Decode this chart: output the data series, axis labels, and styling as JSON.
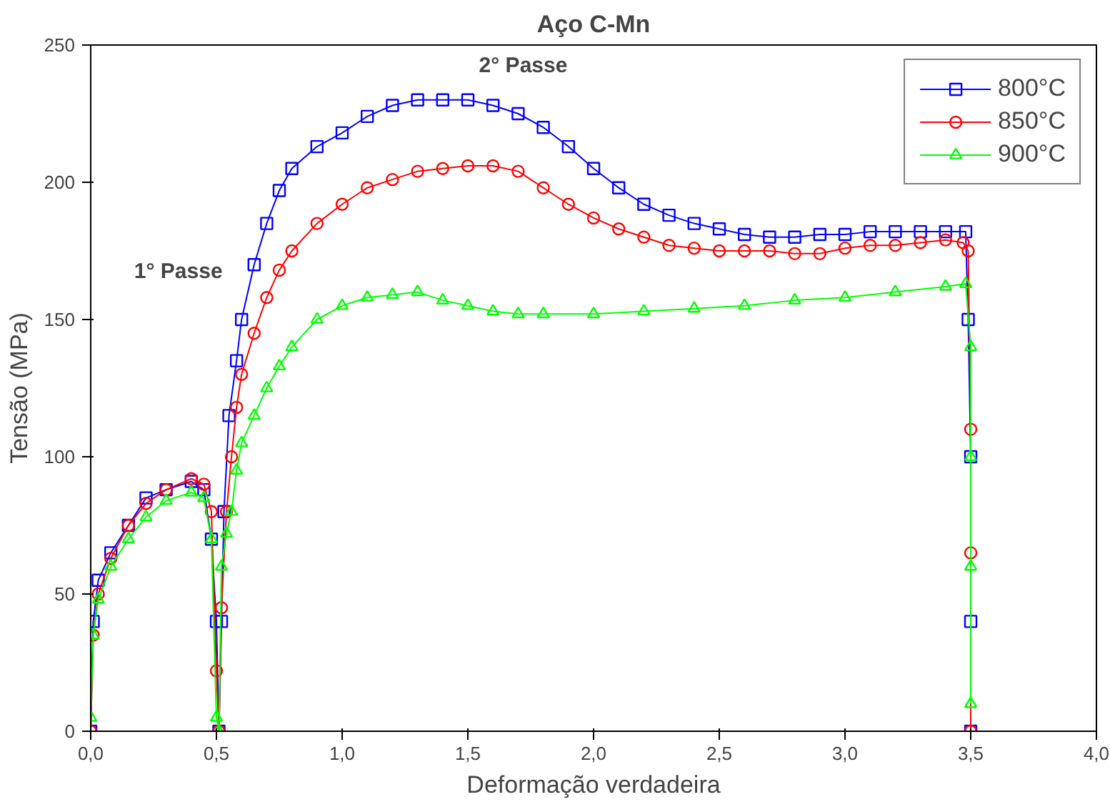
{
  "chart_data": {
    "type": "line",
    "title": "Aço C-Mn",
    "xlabel": "Deformação verdadeira",
    "ylabel": "Tensão (MPa)",
    "annotations": [
      "1° Passe",
      "2° Passe"
    ],
    "xlim": [
      0,
      4
    ],
    "ylim": [
      0,
      250
    ],
    "xticks": [
      {
        "value": 0,
        "label": "0,0"
      },
      {
        "value": 0.5,
        "label": "0,5"
      },
      {
        "value": 1,
        "label": "1,0"
      },
      {
        "value": 1.5,
        "label": "1,5"
      },
      {
        "value": 2,
        "label": "2,0"
      },
      {
        "value": 2.5,
        "label": "2,5"
      },
      {
        "value": 3,
        "label": "3,0"
      },
      {
        "value": 3.5,
        "label": "3,5"
      },
      {
        "value": 4,
        "label": "4,0"
      }
    ],
    "yticks": [
      0,
      50,
      100,
      150,
      200,
      250
    ],
    "grid": false,
    "legend": "top right",
    "line_style": "solid",
    "series": [
      {
        "name": "800°C",
        "color": "#0000ff",
        "marker": "square",
        "x": [
          0,
          0.01,
          0.03,
          0.08,
          0.15,
          0.22,
          0.3,
          0.4,
          0.45,
          0.48,
          0.5,
          0.51,
          0.52,
          0.53,
          0.55,
          0.58,
          0.6,
          0.65,
          0.7,
          0.75,
          0.8,
          0.9,
          1.0,
          1.1,
          1.2,
          1.3,
          1.4,
          1.5,
          1.6,
          1.7,
          1.8,
          1.9,
          2.0,
          2.1,
          2.2,
          2.3,
          2.4,
          2.5,
          2.6,
          2.7,
          2.8,
          2.9,
          3.0,
          3.1,
          3.2,
          3.3,
          3.4,
          3.48,
          3.49,
          3.5,
          3.5,
          3.5
        ],
        "values": [
          0,
          40,
          55,
          65,
          75,
          85,
          88,
          91,
          88,
          70,
          40,
          0,
          40,
          80,
          115,
          135,
          150,
          170,
          185,
          197,
          205,
          213,
          218,
          224,
          228,
          230,
          230,
          230,
          228,
          225,
          220,
          213,
          205,
          198,
          192,
          188,
          185,
          183,
          181,
          180,
          180,
          181,
          181,
          182,
          182,
          182,
          182,
          182,
          150,
          100,
          40,
          0
        ]
      },
      {
        "name": "850°C",
        "color": "#ff0000",
        "marker": "circle",
        "x": [
          0,
          0.01,
          0.03,
          0.08,
          0.15,
          0.22,
          0.3,
          0.4,
          0.45,
          0.48,
          0.5,
          0.51,
          0.52,
          0.54,
          0.56,
          0.58,
          0.6,
          0.65,
          0.7,
          0.75,
          0.8,
          0.9,
          1.0,
          1.1,
          1.2,
          1.3,
          1.4,
          1.5,
          1.6,
          1.7,
          1.8,
          1.9,
          2.0,
          2.1,
          2.2,
          2.3,
          2.4,
          2.5,
          2.6,
          2.7,
          2.8,
          2.9,
          3.0,
          3.1,
          3.2,
          3.3,
          3.4,
          3.47,
          3.49,
          3.5,
          3.5,
          3.5
        ],
        "values": [
          0,
          35,
          50,
          63,
          75,
          83,
          88,
          92,
          90,
          80,
          22,
          0,
          45,
          80,
          100,
          118,
          130,
          145,
          158,
          168,
          175,
          185,
          192,
          198,
          201,
          204,
          205,
          206,
          206,
          204,
          198,
          192,
          187,
          183,
          180,
          177,
          176,
          175,
          175,
          175,
          174,
          174,
          176,
          177,
          177,
          178,
          179,
          178,
          175,
          110,
          65,
          0
        ]
      },
      {
        "name": "900°C",
        "color": "#00ff00",
        "marker": "triangle",
        "x": [
          0,
          0.01,
          0.03,
          0.08,
          0.15,
          0.22,
          0.3,
          0.4,
          0.45,
          0.48,
          0.5,
          0.51,
          0.52,
          0.54,
          0.56,
          0.58,
          0.6,
          0.65,
          0.7,
          0.75,
          0.8,
          0.9,
          1.0,
          1.1,
          1.2,
          1.3,
          1.4,
          1.5,
          1.6,
          1.7,
          1.8,
          2.0,
          2.2,
          2.4,
          2.6,
          2.8,
          3.0,
          3.2,
          3.4,
          3.48,
          3.5,
          3.5,
          3.5,
          3.5
        ],
        "values": [
          5,
          35,
          48,
          60,
          70,
          78,
          84,
          87,
          85,
          70,
          5,
          0,
          60,
          72,
          80,
          95,
          105,
          115,
          125,
          133,
          140,
          150,
          155,
          158,
          159,
          160,
          157,
          155,
          153,
          152,
          152,
          152,
          153,
          154,
          155,
          157,
          158,
          160,
          162,
          163,
          140,
          100,
          60,
          10
        ]
      }
    ]
  }
}
